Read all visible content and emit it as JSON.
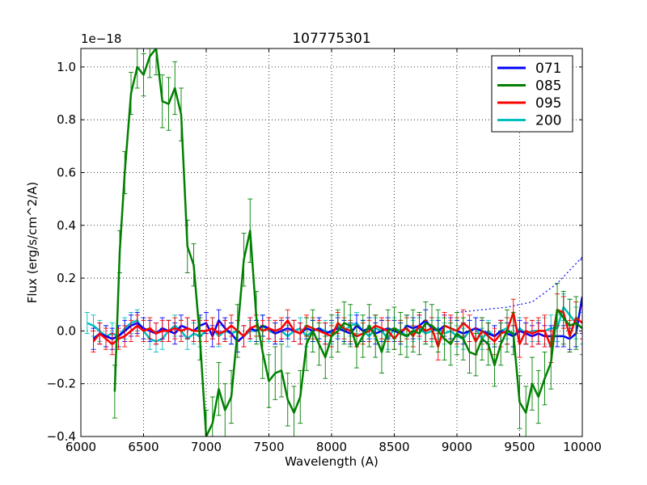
{
  "chart_data": {
    "type": "line",
    "title": "107775301",
    "xlabel": "Wavelength (A)",
    "ylabel": "Flux (erg/s/cm^2/A)",
    "y_scale_label": "1e−18",
    "xlim": [
      6000,
      10000
    ],
    "ylim": [
      -0.4,
      1.07
    ],
    "grid": true,
    "legend_position": "top-right",
    "x_ticks": [
      6000,
      6500,
      7000,
      7500,
      8000,
      8500,
      9000,
      9500,
      10000
    ],
    "x_tick_labels": [
      "6000",
      "6500",
      "7000",
      "7500",
      "8000",
      "8500",
      "9000",
      "9500",
      "10000"
    ],
    "y_ticks": [
      -0.4,
      -0.2,
      0.0,
      0.2,
      0.4,
      0.6,
      0.8,
      1.0
    ],
    "y_tick_labels": [
      "−0.4",
      "−0.2",
      "0.0",
      "0.2",
      "0.4",
      "0.6",
      "0.8",
      "1.0"
    ],
    "series": [
      {
        "name": "071",
        "color": "#0000ff",
        "x": [
          6100,
          6150,
          6200,
          6250,
          6300,
          6350,
          6400,
          6450,
          6500,
          6550,
          6600,
          6650,
          6700,
          6750,
          6800,
          6850,
          6900,
          6950,
          7000,
          7050,
          7100,
          7150,
          7200,
          7250,
          7300,
          7350,
          7400,
          7450,
          7500,
          7550,
          7600,
          7650,
          7700,
          7750,
          7800,
          7850,
          7900,
          7950,
          8000,
          8050,
          8100,
          8150,
          8200,
          8250,
          8300,
          8350,
          8400,
          8450,
          8500,
          8550,
          8600,
          8650,
          8700,
          8750,
          8800,
          8850,
          8900,
          8950,
          9000,
          9050,
          9100,
          9150,
          9200,
          9250,
          9300,
          9350,
          9400,
          9450,
          9500,
          9550,
          9600,
          9650,
          9700,
          9750,
          9800,
          9850,
          9900,
          9950,
          10000
        ],
        "y": [
          -0.03,
          -0.01,
          -0.02,
          -0.03,
          -0.02,
          0.0,
          0.02,
          0.03,
          0.01,
          0.0,
          -0.01,
          0.01,
          0.0,
          -0.01,
          0.02,
          0.01,
          0.0,
          0.02,
          0.03,
          -0.02,
          0.04,
          0.01,
          -0.01,
          -0.04,
          -0.02,
          0.01,
          0.0,
          0.02,
          0.01,
          -0.01,
          0.0,
          0.01,
          0.0,
          -0.01,
          0.01,
          0.0,
          0.01,
          -0.01,
          0.0,
          0.01,
          0.0,
          -0.01,
          0.02,
          0.0,
          0.01,
          -0.01,
          0.0,
          0.01,
          0.0,
          -0.01,
          0.02,
          0.01,
          0.02,
          0.04,
          0.01,
          0.0,
          0.02,
          0.01,
          0.0,
          -0.01,
          0.0,
          0.01,
          0.0,
          -0.01,
          -0.02,
          0.0,
          -0.01,
          -0.02,
          0.0,
          -0.01,
          -0.02,
          -0.01,
          -0.02,
          -0.02,
          -0.02,
          -0.02,
          -0.03,
          -0.01,
          0.13
        ],
        "err": [
          0.04,
          0.04,
          0.04,
          0.04,
          0.04,
          0.04,
          0.04,
          0.04,
          0.04,
          0.04,
          0.04,
          0.04,
          0.04,
          0.04,
          0.04,
          0.04,
          0.04,
          0.04,
          0.04,
          0.04,
          0.04,
          0.04,
          0.04,
          0.04,
          0.04,
          0.04,
          0.04,
          0.04,
          0.04,
          0.04,
          0.04,
          0.04,
          0.04,
          0.04,
          0.04,
          0.04,
          0.04,
          0.04,
          0.04,
          0.04,
          0.04,
          0.04,
          0.04,
          0.04,
          0.04,
          0.04,
          0.04,
          0.04,
          0.04,
          0.04,
          0.04,
          0.04,
          0.04,
          0.04,
          0.04,
          0.04,
          0.04,
          0.04,
          0.04,
          0.04,
          0.04,
          0.04,
          0.04,
          0.04,
          0.04,
          0.04,
          0.04,
          0.04,
          0.04,
          0.04,
          0.04,
          0.04,
          0.04,
          0.04,
          0.04,
          0.04,
          0.04,
          0.05,
          0.14
        ]
      },
      {
        "name": "085",
        "color": "#008000",
        "x": [
          6270,
          6310,
          6350,
          6400,
          6450,
          6500,
          6550,
          6600,
          6650,
          6700,
          6750,
          6800,
          6850,
          6900,
          6950,
          7000,
          7050,
          7100,
          7150,
          7200,
          7250,
          7300,
          7350,
          7400,
          7450,
          7500,
          7550,
          7600,
          7650,
          7700,
          7750,
          7800,
          7850,
          7900,
          7950,
          8000,
          8050,
          8100,
          8150,
          8200,
          8250,
          8300,
          8350,
          8400,
          8450,
          8500,
          8550,
          8600,
          8650,
          8700,
          8750,
          8800,
          8850,
          8900,
          8950,
          9000,
          9050,
          9100,
          9150,
          9200,
          9250,
          9300,
          9350,
          9400,
          9450,
          9500,
          9550,
          9600,
          9650,
          9700,
          9750,
          9800,
          9850,
          9900,
          9950,
          10000
        ],
        "y": [
          -0.23,
          0.3,
          0.6,
          0.9,
          1.0,
          0.97,
          1.04,
          1.07,
          0.87,
          0.86,
          0.92,
          0.82,
          0.32,
          0.25,
          -0.03,
          -0.4,
          -0.35,
          -0.22,
          -0.3,
          -0.25,
          0.0,
          0.27,
          0.38,
          0.05,
          -0.08,
          -0.19,
          -0.16,
          -0.15,
          -0.26,
          -0.31,
          -0.25,
          -0.05,
          0.0,
          -0.05,
          -0.1,
          -0.02,
          0.0,
          0.03,
          0.02,
          -0.06,
          -0.02,
          0.02,
          -0.02,
          -0.08,
          0.0,
          0.01,
          -0.01,
          -0.02,
          0.0,
          -0.01,
          0.03,
          0.02,
          0.0,
          -0.03,
          -0.05,
          -0.01,
          -0.03,
          -0.08,
          -0.09,
          -0.03,
          -0.05,
          -0.13,
          -0.05,
          0.0,
          -0.01,
          -0.27,
          -0.31,
          -0.2,
          -0.25,
          -0.18,
          -0.12,
          0.08,
          0.05,
          0.02,
          0.03,
          0.01
        ],
        "err": [
          0.1,
          0.08,
          0.08,
          0.08,
          0.08,
          0.08,
          0.08,
          0.1,
          0.1,
          0.1,
          0.1,
          0.1,
          0.1,
          0.08,
          0.08,
          0.1,
          0.1,
          0.1,
          0.1,
          0.1,
          0.1,
          0.1,
          0.12,
          0.1,
          0.1,
          0.1,
          0.1,
          0.1,
          0.1,
          0.1,
          0.1,
          0.1,
          0.08,
          0.08,
          0.08,
          0.08,
          0.08,
          0.08,
          0.08,
          0.08,
          0.08,
          0.08,
          0.08,
          0.08,
          0.08,
          0.08,
          0.08,
          0.08,
          0.08,
          0.08,
          0.08,
          0.08,
          0.08,
          0.08,
          0.08,
          0.08,
          0.08,
          0.08,
          0.08,
          0.08,
          0.08,
          0.08,
          0.08,
          0.08,
          0.08,
          0.1,
          0.1,
          0.1,
          0.1,
          0.1,
          0.1,
          0.1,
          0.1,
          0.1,
          0.1,
          0.1
        ]
      },
      {
        "name": "095",
        "color": "#ff0000",
        "x": [
          6100,
          6150,
          6200,
          6250,
          6300,
          6350,
          6400,
          6450,
          6500,
          6550,
          6600,
          6650,
          6700,
          6750,
          6800,
          6850,
          6900,
          6950,
          7000,
          7050,
          7100,
          7150,
          7200,
          7250,
          7300,
          7350,
          7400,
          7450,
          7500,
          7550,
          7600,
          7650,
          7700,
          7750,
          7800,
          7850,
          7900,
          7950,
          8000,
          8050,
          8100,
          8150,
          8200,
          8250,
          8300,
          8350,
          8400,
          8450,
          8500,
          8550,
          8600,
          8650,
          8700,
          8750,
          8800,
          8850,
          8900,
          8950,
          9000,
          9050,
          9100,
          9150,
          9200,
          9250,
          9300,
          9350,
          9400,
          9450,
          9500,
          9550,
          9600,
          9650,
          9700,
          9750,
          9800,
          9850,
          9900,
          9950,
          10000
        ],
        "y": [
          -0.04,
          -0.01,
          -0.03,
          -0.05,
          -0.03,
          -0.02,
          0.0,
          0.02,
          0.0,
          0.01,
          -0.01,
          0.0,
          0.0,
          0.01,
          0.0,
          0.01,
          0.0,
          0.0,
          0.0,
          0.01,
          -0.01,
          0.0,
          0.02,
          0.0,
          -0.02,
          0.01,
          0.02,
          0.0,
          0.01,
          0.0,
          0.01,
          0.04,
          0.0,
          -0.01,
          0.02,
          0.01,
          0.0,
          -0.01,
          -0.02,
          0.03,
          0.01,
          0.0,
          -0.02,
          -0.01,
          0.0,
          0.02,
          0.01,
          0.0,
          -0.03,
          0.0,
          0.01,
          -0.02,
          0.02,
          0.0,
          0.01,
          -0.06,
          0.02,
          0.01,
          0.0,
          0.03,
          0.01,
          -0.04,
          0.0,
          -0.02,
          -0.04,
          -0.01,
          0.0,
          0.07,
          -0.05,
          0.0,
          -0.01,
          0.0,
          0.0,
          -0.06,
          0.08,
          0.07,
          -0.02,
          0.05,
          0.03
        ],
        "err": [
          0.04,
          0.04,
          0.04,
          0.04,
          0.04,
          0.04,
          0.04,
          0.04,
          0.04,
          0.04,
          0.04,
          0.04,
          0.04,
          0.04,
          0.04,
          0.04,
          0.04,
          0.04,
          0.04,
          0.04,
          0.04,
          0.04,
          0.04,
          0.04,
          0.04,
          0.04,
          0.04,
          0.04,
          0.04,
          0.04,
          0.04,
          0.04,
          0.04,
          0.04,
          0.04,
          0.04,
          0.04,
          0.04,
          0.04,
          0.04,
          0.04,
          0.04,
          0.04,
          0.04,
          0.04,
          0.04,
          0.04,
          0.04,
          0.04,
          0.04,
          0.04,
          0.04,
          0.04,
          0.04,
          0.04,
          0.05,
          0.05,
          0.05,
          0.05,
          0.05,
          0.05,
          0.05,
          0.05,
          0.05,
          0.05,
          0.05,
          0.05,
          0.05,
          0.05,
          0.05,
          0.05,
          0.05,
          0.06,
          0.06,
          0.06,
          0.06,
          0.06,
          0.06,
          0.06
        ]
      },
      {
        "name": "200",
        "color": "#00bfbf",
        "x": [
          6050,
          6100,
          6150,
          6200,
          6250,
          6300,
          6350,
          6400,
          6450,
          6500,
          6550,
          6600,
          6650,
          6700,
          6750,
          6800,
          6850,
          6900,
          6950,
          7000,
          7050,
          7100,
          7150,
          7200,
          7250,
          7300,
          7350,
          7400,
          7450,
          7500,
          7550,
          7600,
          7650,
          7700,
          7750,
          7800,
          7850,
          7900,
          7950,
          8000,
          8050,
          8100,
          8150,
          8200,
          8250,
          8300,
          8350,
          8400,
          8450,
          8500,
          8550,
          8600,
          8650,
          8700,
          8750,
          8800,
          8850,
          8900,
          8950,
          9000,
          9050,
          9100,
          9150,
          9200,
          9250,
          9300,
          9350,
          9400,
          9450,
          9500,
          9550,
          9600,
          9650,
          9700,
          9750,
          9800,
          9850,
          9900,
          9950,
          10000
        ],
        "y": [
          0.03,
          0.02,
          0.0,
          -0.02,
          -0.01,
          -0.02,
          0.01,
          0.03,
          0.04,
          0.0,
          -0.03,
          -0.04,
          -0.03,
          0.0,
          0.02,
          0.0,
          -0.03,
          -0.01,
          -0.02,
          0.0,
          0.01,
          -0.02,
          0.0,
          -0.01,
          0.0,
          -0.02,
          0.0,
          0.0,
          0.02,
          0.0,
          -0.01,
          0.0,
          -0.02,
          0.0,
          0.01,
          -0.02,
          0.0,
          0.01,
          0.0,
          -0.01,
          0.02,
          0.0,
          0.02,
          0.03,
          0.0,
          -0.02,
          0.01,
          0.0,
          -0.03,
          0.01,
          0.0,
          -0.02,
          0.0,
          0.01,
          -0.01,
          0.0,
          0.01,
          -0.01,
          0.0,
          -0.02,
          -0.03,
          0.0,
          0.01,
          -0.03,
          0.0,
          -0.02,
          0.0,
          0.01,
          -0.02,
          0.01,
          -0.01,
          0.0,
          0.0,
          0.0,
          0.01,
          0.01,
          0.09,
          0.06,
          0.03,
          0.01
        ],
        "err": [
          0.04,
          0.04,
          0.04,
          0.04,
          0.04,
          0.04,
          0.04,
          0.04,
          0.04,
          0.04,
          0.04,
          0.04,
          0.04,
          0.04,
          0.04,
          0.04,
          0.04,
          0.04,
          0.04,
          0.04,
          0.04,
          0.04,
          0.04,
          0.04,
          0.04,
          0.04,
          0.04,
          0.04,
          0.04,
          0.04,
          0.04,
          0.04,
          0.04,
          0.04,
          0.04,
          0.04,
          0.04,
          0.04,
          0.04,
          0.04,
          0.04,
          0.04,
          0.04,
          0.04,
          0.04,
          0.04,
          0.04,
          0.04,
          0.04,
          0.04,
          0.04,
          0.04,
          0.04,
          0.04,
          0.04,
          0.04,
          0.04,
          0.04,
          0.04,
          0.04,
          0.04,
          0.04,
          0.04,
          0.04,
          0.04,
          0.04,
          0.04,
          0.04,
          0.04,
          0.04,
          0.04,
          0.04,
          0.04,
          0.05,
          0.05,
          0.05,
          0.05,
          0.06,
          0.06,
          0.06
        ]
      }
    ],
    "reference_lines": [
      {
        "name": "dotted-continuum",
        "color": "#0000ff",
        "style": "dotted",
        "x": [
          9000,
          9200,
          9400,
          9600,
          9800,
          10000
        ],
        "y": [
          0.07,
          0.08,
          0.09,
          0.11,
          0.18,
          0.28
        ]
      }
    ]
  }
}
